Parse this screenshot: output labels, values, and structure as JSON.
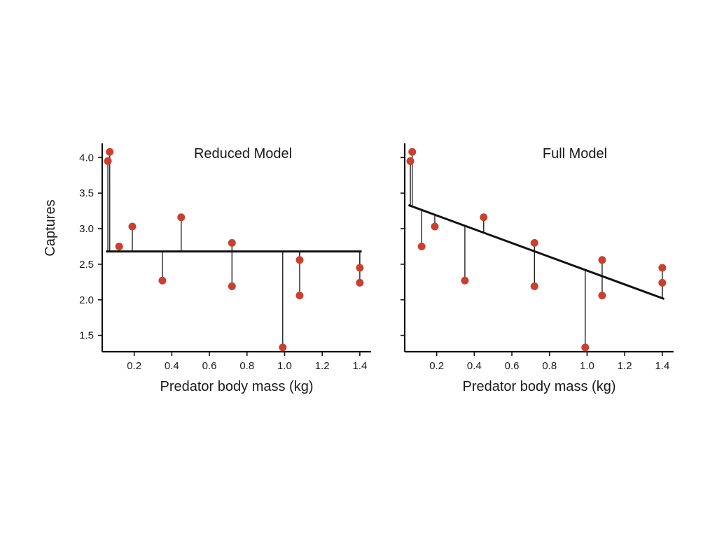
{
  "chart_data": {
    "type": "scatter",
    "ylabel": "Captures",
    "xlabel": "Predator body mass (kg)",
    "xlim": [
      0.03,
      1.46
    ],
    "ylim": [
      1.27,
      4.2
    ],
    "xticks": [
      0.2,
      0.4,
      0.6,
      0.8,
      1.0,
      1.2,
      1.4
    ],
    "xtick_labels": [
      "0.2",
      "0.4",
      "0.6",
      "0.8",
      "1.0",
      "1.2",
      "1.4"
    ],
    "yticks": [
      1.5,
      2.0,
      2.5,
      3.0,
      3.5,
      4.0
    ],
    "ytick_labels": [
      "1.5",
      "2.0",
      "2.5",
      "3.0",
      "3.5",
      "4.0"
    ],
    "point_color": "#c9402f",
    "line_color": "#111111",
    "points": {
      "x": [
        0.06,
        0.07,
        0.12,
        0.19,
        0.35,
        0.45,
        0.72,
        0.72,
        0.99,
        1.08,
        1.08,
        1.4,
        1.4
      ],
      "y": [
        3.95,
        4.08,
        2.75,
        3.03,
        2.27,
        3.16,
        2.8,
        2.19,
        1.33,
        2.56,
        2.06,
        2.45,
        2.24
      ]
    },
    "panels": [
      {
        "title": "Reduced Model",
        "fit": {
          "intercept": 2.68,
          "slope": 0.0,
          "x_range": [
            0.05,
            1.41
          ]
        },
        "show_ytick_labels": true
      },
      {
        "title": "Full Model",
        "fit": {
          "intercept": 3.38,
          "slope": -0.97,
          "x_range": [
            0.05,
            1.41
          ]
        },
        "show_ytick_labels": false
      }
    ]
  }
}
